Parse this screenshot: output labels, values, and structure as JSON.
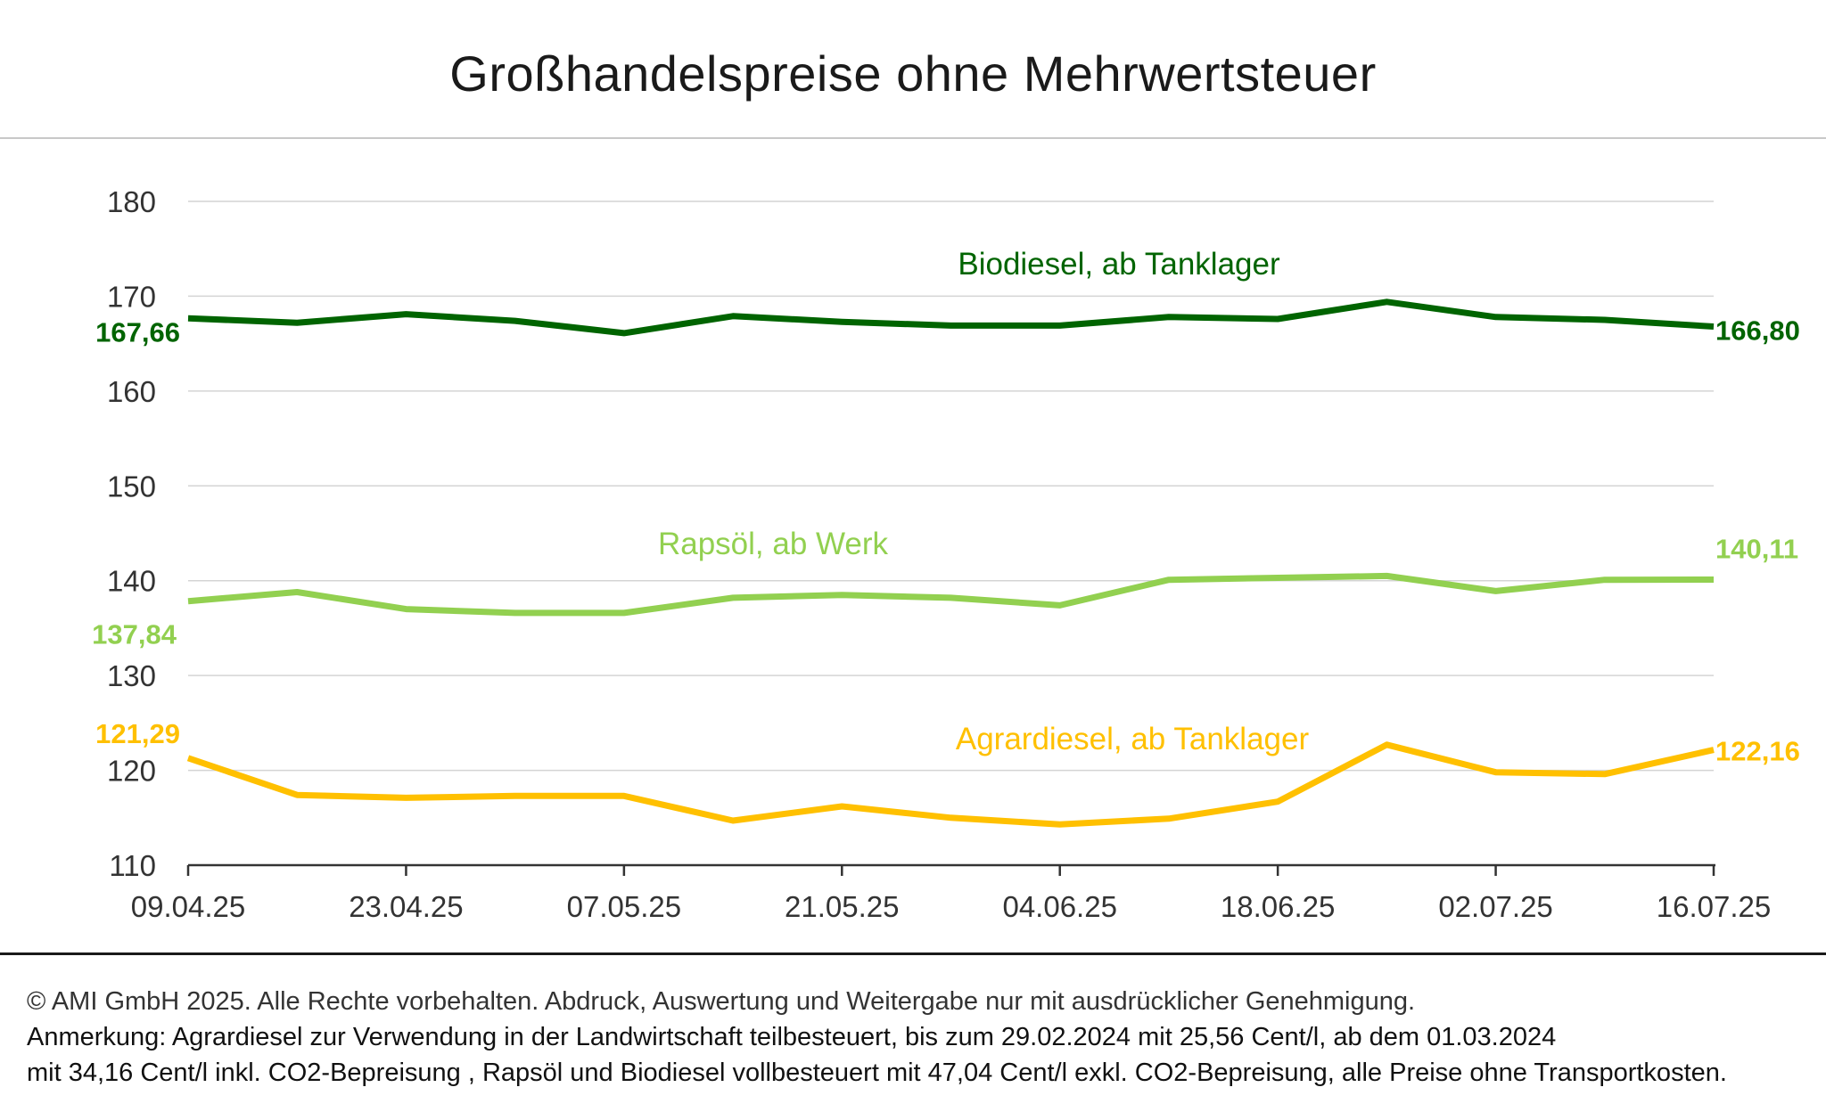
{
  "title": "Großhandelspreise ohne Mehrwertsteuer",
  "footer": {
    "copyright": "© AMI GmbH 2025.  Alle Rechte vorbehalten.  Abdruck, Auswertung und Weitergabe nur mit ausdrücklicher Genehmigung.",
    "note_line1": "Anmerkung: Agrardiesel zur Verwendung in der Landwirtschaft teilbesteuert, bis zum 29.02.2024 mit 25,56 Cent/l, ab dem 01.03.2024",
    "note_line2": "mit 34,16 Cent/l inkl. CO2-Bepreisung , Rapsöl und Biodiesel vollbesteuert mit 47,04 Cent/l exkl. CO2-Bepreisung, alle Preise ohne Transportkosten."
  },
  "chart_data": {
    "type": "line",
    "title": "Großhandelspreise ohne Mehrwertsteuer",
    "xlabel": "",
    "ylabel": "",
    "ylim": [
      110,
      180
    ],
    "yticks": [
      110,
      120,
      130,
      140,
      150,
      160,
      170,
      180
    ],
    "grid": true,
    "x": [
      "09.04.25",
      "16.04.25",
      "23.04.25",
      "30.04.25",
      "07.05.25",
      "14.05.25",
      "21.05.25",
      "28.05.25",
      "04.06.25",
      "11.06.25",
      "18.06.25",
      "25.06.25",
      "02.07.25",
      "09.07.25",
      "16.07.25"
    ],
    "xtick_labels": [
      "09.04.25",
      "23.04.25",
      "07.05.25",
      "21.05.25",
      "04.06.25",
      "18.06.25",
      "02.07.25",
      "16.07.25"
    ],
    "series": [
      {
        "name": "Biodiesel, ab Tanklager",
        "color": "#006400",
        "values": [
          167.66,
          167.2,
          168.1,
          167.4,
          166.1,
          167.9,
          167.3,
          166.9,
          166.9,
          167.8,
          167.6,
          169.4,
          167.8,
          167.5,
          166.8
        ],
        "start_label": "167,66",
        "end_label": "166,80"
      },
      {
        "name": "Rapsöl, ab Werk",
        "color": "#92d050",
        "values": [
          137.84,
          138.8,
          137.0,
          136.6,
          136.6,
          138.2,
          138.5,
          138.2,
          137.4,
          140.1,
          140.3,
          140.5,
          138.9,
          140.1,
          140.11
        ],
        "start_label": "137,84",
        "end_label": "140,11"
      },
      {
        "name": "Agrardiesel, ab Tanklager",
        "color": "#ffc000",
        "values": [
          121.29,
          117.4,
          117.1,
          117.3,
          117.3,
          114.7,
          116.2,
          115.0,
          114.3,
          114.9,
          116.7,
          122.7,
          119.8,
          119.6,
          122.16
        ],
        "start_label": "121,29",
        "end_label": "122,16"
      }
    ]
  }
}
